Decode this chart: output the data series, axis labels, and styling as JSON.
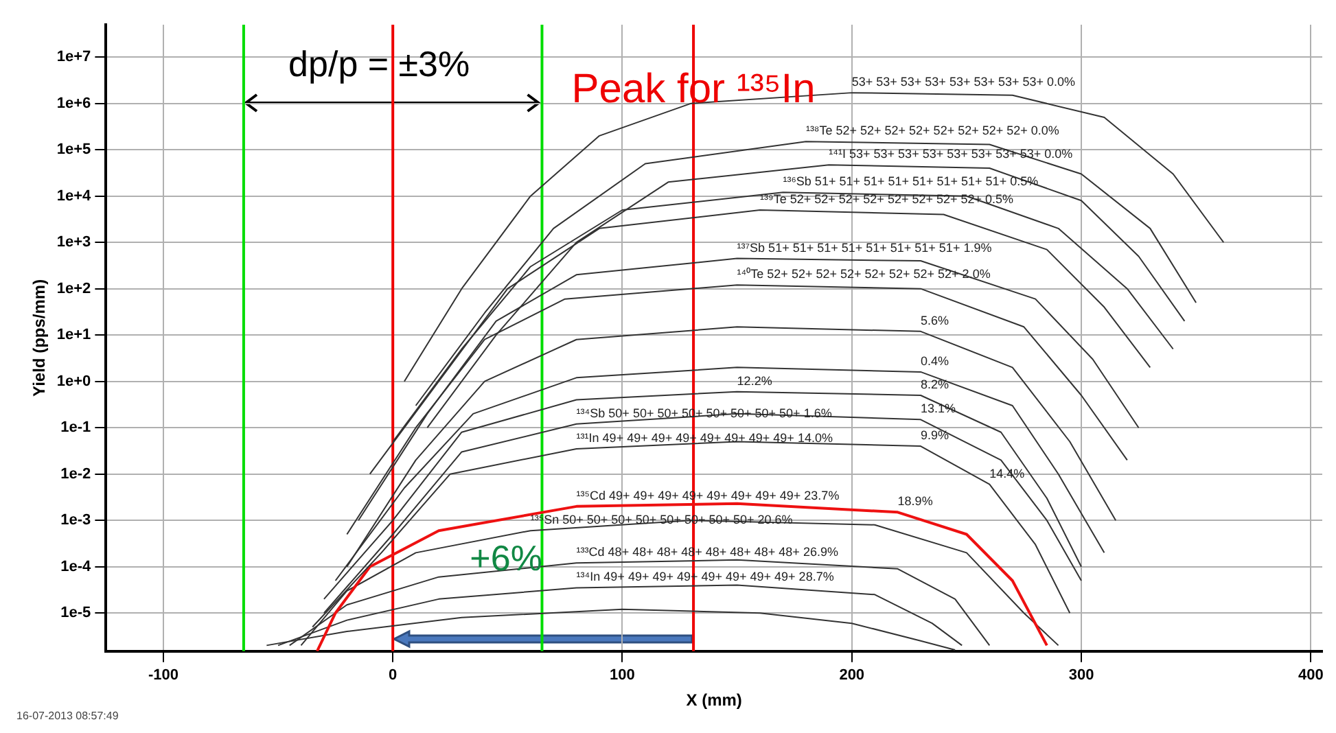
{
  "chart_data": {
    "type": "line",
    "xlabel": "X (mm)",
    "ylabel": "Yield (pps/mm)",
    "log": "y",
    "xlim": [
      -125,
      405
    ],
    "xticks": [
      -100,
      0,
      100,
      200,
      300,
      400
    ],
    "ylim": [
      1.5e-06,
      50000000.0
    ],
    "yticks": [
      {
        "value": 10000000.0,
        "label": "1e+7"
      },
      {
        "value": 1000000.0,
        "label": "1e+6"
      },
      {
        "value": 100000.0,
        "label": "1e+5"
      },
      {
        "value": 10000.0,
        "label": "1e+4"
      },
      {
        "value": 1000.0,
        "label": "1e+3"
      },
      {
        "value": 100,
        "label": "1e+2"
      },
      {
        "value": 10,
        "label": "1e+1"
      },
      {
        "value": 1,
        "label": "1e+0"
      },
      {
        "value": 0.1,
        "label": "1e-1"
      },
      {
        "value": 0.01,
        "label": "1e-2"
      },
      {
        "value": 0.001,
        "label": "1e-3"
      },
      {
        "value": 0.0001,
        "label": "1e-4"
      },
      {
        "value": 1e-05,
        "label": "1e-5"
      }
    ],
    "grid": true,
    "legend": false,
    "marker": "none",
    "line_style": "solid",
    "series": [
      {
        "color": "#333333",
        "x": [
          5,
          30,
          60,
          90,
          130,
          200,
          270,
          310,
          340,
          362
        ],
        "values": [
          1,
          100,
          10000,
          200000,
          1000000,
          1700000,
          1500000,
          500000,
          30000,
          1000
        ]
      },
      {
        "color": "#333333",
        "x": [
          10,
          40,
          70,
          110,
          180,
          260,
          300,
          330,
          350
        ],
        "values": [
          0.3,
          30,
          2000,
          50000,
          150000,
          130000,
          30000,
          2000,
          50
        ]
      },
      {
        "color": "#333333",
        "x": [
          15,
          45,
          80,
          120,
          190,
          260,
          300,
          325,
          345
        ],
        "values": [
          0.1,
          10,
          1000,
          20000,
          47000,
          40000,
          8000,
          500,
          20
        ]
      },
      {
        "color": "#333333",
        "x": [
          0,
          30,
          60,
          100,
          170,
          250,
          290,
          320,
          340
        ],
        "values": [
          0.05,
          5,
          300,
          5000,
          12000,
          10000,
          2000,
          100,
          5
        ]
      },
      {
        "color": "#333333",
        "x": [
          -10,
          20,
          50,
          90,
          160,
          240,
          285,
          310,
          330
        ],
        "values": [
          0.01,
          1,
          100,
          2000,
          5000,
          4000,
          700,
          40,
          2
        ]
      },
      {
        "color": "#333333",
        "x": [
          -15,
          15,
          45,
          80,
          150,
          230,
          280,
          305,
          325
        ],
        "values": [
          0.001,
          0.2,
          20,
          200,
          450,
          400,
          60,
          3,
          0.1
        ]
      },
      {
        "color": "#333333",
        "x": [
          -20,
          10,
          40,
          75,
          150,
          230,
          275,
          300,
          320
        ],
        "values": [
          0.0005,
          0.1,
          8,
          60,
          120,
          100,
          15,
          0.5,
          0.02
        ]
      },
      {
        "color": "#333333",
        "x": [
          -20,
          10,
          40,
          80,
          150,
          230,
          270,
          295,
          315
        ],
        "values": [
          0.0001,
          0.02,
          1,
          8,
          15,
          12,
          2,
          0.05,
          0.001
        ]
      },
      {
        "color": "#333333",
        "x": [
          -25,
          5,
          35,
          80,
          150,
          230,
          270,
          290,
          310
        ],
        "values": [
          5e-05,
          0.005,
          0.2,
          1.2,
          2,
          1.6,
          0.3,
          0.01,
          0.0002
        ]
      },
      {
        "color": "#333333",
        "x": [
          -30,
          0,
          30,
          80,
          150,
          230,
          265,
          285,
          300
        ],
        "values": [
          2e-05,
          0.001,
          0.08,
          0.4,
          0.6,
          0.5,
          0.08,
          0.003,
          0.0001
        ]
      },
      {
        "color": "#333333",
        "x": [
          -30,
          0,
          30,
          80,
          150,
          230,
          265,
          285,
          300
        ],
        "values": [
          1e-05,
          0.0005,
          0.03,
          0.12,
          0.2,
          0.15,
          0.02,
          0.001,
          5e-05
        ]
      },
      {
        "color": "#333333",
        "x": [
          -35,
          -5,
          25,
          80,
          150,
          230,
          260,
          280,
          295
        ],
        "values": [
          5e-06,
          0.0002,
          0.01,
          0.035,
          0.05,
          0.04,
          0.006,
          0.0003,
          1e-05
        ]
      },
      {
        "color": "#ee1111",
        "x": [
          -33,
          -25,
          -10,
          20,
          80,
          150,
          220,
          250,
          270,
          285
        ],
        "values": [
          1.5e-06,
          1e-05,
          0.0001,
          0.0006,
          0.002,
          0.0023,
          0.0015,
          0.0005,
          5e-05,
          2e-06
        ]
      },
      {
        "color": "#333333",
        "x": [
          -40,
          -20,
          10,
          60,
          130,
          210,
          250,
          275,
          290
        ],
        "values": [
          2e-06,
          3e-05,
          0.0002,
          0.0006,
          0.001,
          0.0008,
          0.0002,
          1e-05,
          2e-06
        ]
      },
      {
        "color": "#333333",
        "x": [
          -45,
          -20,
          20,
          80,
          150,
          220,
          245,
          260
        ],
        "values": [
          2e-06,
          1.5e-05,
          6e-05,
          0.00012,
          0.00014,
          9e-05,
          2e-05,
          2e-06
        ]
      },
      {
        "color": "#333333",
        "x": [
          -50,
          -20,
          20,
          80,
          150,
          210,
          235,
          248
        ],
        "values": [
          2e-06,
          7e-06,
          2e-05,
          3.5e-05,
          4e-05,
          2.5e-05,
          6e-06,
          2e-06
        ]
      },
      {
        "color": "#333333",
        "x": [
          -55,
          -20,
          30,
          100,
          160,
          200,
          230,
          245
        ],
        "values": [
          2e-06,
          4e-06,
          8e-06,
          1.2e-05,
          1e-05,
          6e-06,
          2.5e-06,
          1.6e-06
        ]
      }
    ],
    "ref_lines": [
      {
        "axis": "x",
        "value": -65,
        "label": null,
        "color": "#00dd00"
      },
      {
        "axis": "x",
        "value": 65,
        "label": null,
        "color": "#00dd00"
      },
      {
        "axis": "x",
        "value": 0,
        "label": null,
        "color": "#ee0000"
      },
      {
        "axis": "x",
        "value": 131,
        "label": "Peak for ¹³⁵In",
        "color": "#ee0000"
      }
    ],
    "annotations": [
      {
        "text": "53+ 53+ 53+ 53+ 53+ 53+ 53+ 53+ 0.0%",
        "x": 200,
        "y": 1700000
      },
      {
        "text": "¹³⁸Te 52+ 52+ 52+ 52+ 52+ 52+ 52+ 52+ 0.0%",
        "x": 180,
        "y": 150000
      },
      {
        "text": "¹⁴¹I 53+ 53+ 53+ 53+ 53+ 53+ 53+ 53+ 0.0%",
        "x": 190,
        "y": 47000
      },
      {
        "text": "¹³⁶Sb 51+ 51+ 51+ 51+ 51+ 51+ 51+ 51+ 0.5%",
        "x": 170,
        "y": 12000
      },
      {
        "text": "¹³⁹Te 52+ 52+ 52+ 52+ 52+ 52+ 52+ 52+ 0.5%",
        "x": 160,
        "y": 5000
      },
      {
        "text": "¹³⁷Sb 51+ 51+ 51+ 51+ 51+ 51+ 51+ 51+ 1.9%",
        "x": 150,
        "y": 450
      },
      {
        "text": "¹⁴⁰Te 52+ 52+ 52+ 52+ 52+ 52+ 52+ 52+ 2.0%",
        "x": 150,
        "y": 120
      },
      {
        "text": "5.6%",
        "x": 230,
        "y": 12
      },
      {
        "text": "0.4%",
        "x": 230,
        "y": 1.6
      },
      {
        "text": "12.2%",
        "x": 150,
        "y": 0.6
      },
      {
        "text": "8.2%",
        "x": 230,
        "y": 0.5
      },
      {
        "text": "13.1%",
        "x": 230,
        "y": 0.15
      },
      {
        "text": "9.9%",
        "x": 230,
        "y": 0.04
      },
      {
        "text": "¹³⁴Sb 50+ 50+ 50+ 50+ 50+ 50+ 50+ 50+ 1.6%",
        "x": 80,
        "y": 0.12
      },
      {
        "text": "¹³¹In 49+ 49+ 49+ 49+ 49+ 49+ 49+ 49+ 14.0%",
        "x": 80,
        "y": 0.035
      },
      {
        "text": "18.9%",
        "x": 220,
        "y": 0.0015
      },
      {
        "text": "14.4%",
        "x": 260,
        "y": 0.006
      },
      {
        "text": "¹³⁵Cd 49+ 49+ 49+ 49+ 49+ 49+ 49+ 49+ 23.7%",
        "x": 80,
        "y": 0.002
      },
      {
        "text": "¹³⁵Sn 50+ 50+ 50+ 50+ 50+ 50+ 50+ 50+ 20.6%",
        "x": 60,
        "y": 0.0006
      },
      {
        "text": "¹³³Cd 48+ 48+ 48+ 48+ 48+ 48+ 48+ 48+ 26.9%",
        "x": 80,
        "y": 0.00012
      },
      {
        "text": "¹³⁴In 49+ 49+ 49+ 49+ 49+ 49+ 49+ 49+ 28.7%",
        "x": 80,
        "y": 3.5e-05
      },
      {
        "text": "dp/p = ±3%",
        "x": 0,
        "y": 1000000
      },
      "+6%",
      "16-07-2013 08:57:49"
    ]
  }
}
